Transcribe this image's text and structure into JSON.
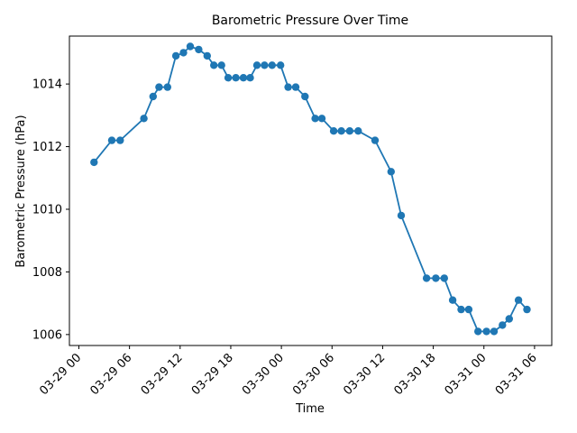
{
  "figure": {
    "background": "#ffffff",
    "text_color": "#000000"
  },
  "chart_data": {
    "type": "line",
    "title": "Barometric Pressure Over Time",
    "xlabel": "Time",
    "ylabel": "Barometric Pressure (hPa)",
    "grid": false,
    "legend": "none",
    "line_color": "#1f77b4",
    "marker": "circle",
    "x_unit": "hours since 03-29 00:00",
    "x": [
      1.8,
      3.9,
      4.9,
      7.7,
      8.8,
      9.5,
      10.5,
      11.5,
      12.4,
      13.2,
      14.2,
      15.2,
      16.0,
      16.9,
      17.7,
      18.6,
      19.5,
      20.3,
      21.1,
      22.0,
      22.9,
      23.9,
      24.8,
      25.7,
      26.8,
      28.0,
      28.8,
      30.2,
      31.1,
      32.1,
      33.1,
      35.1,
      37.0,
      38.2,
      41.2,
      42.3,
      43.3,
      44.3,
      45.3,
      46.2,
      47.3,
      48.3,
      49.2,
      50.2,
      51.0,
      52.1,
      53.1
    ],
    "y": [
      1011.5,
      1012.2,
      1012.2,
      1012.9,
      1013.6,
      1013.9,
      1013.9,
      1014.9,
      1015.0,
      1015.2,
      1015.1,
      1014.9,
      1014.6,
      1014.6,
      1014.2,
      1014.2,
      1014.2,
      1014.2,
      1014.6,
      1014.6,
      1014.6,
      1014.6,
      1013.9,
      1013.9,
      1013.6,
      1012.9,
      1012.9,
      1012.5,
      1012.5,
      1012.5,
      1012.5,
      1012.2,
      1011.2,
      1009.8,
      1007.8,
      1007.8,
      1007.8,
      1007.1,
      1006.8,
      1006.8,
      1006.1,
      1006.1,
      1006.1,
      1006.3,
      1006.5,
      1007.1,
      1006.8
    ],
    "xlim": [
      -1.12,
      56.04
    ],
    "ylim": [
      1005.65,
      1015.53
    ],
    "xticks": {
      "positions_hours": [
        0,
        6,
        12,
        18,
        24,
        30,
        36,
        42,
        48,
        54
      ],
      "labels": [
        "03-29 00",
        "03-29 06",
        "03-29 12",
        "03-29 18",
        "03-30 00",
        "03-30 06",
        "03-30 12",
        "03-30 18",
        "03-31 00",
        "03-31 06"
      ],
      "rotation_deg": 45
    },
    "yticks": {
      "positions": [
        1006,
        1008,
        1010,
        1012,
        1014
      ],
      "labels": [
        "1006",
        "1008",
        "1010",
        "1012",
        "1014"
      ]
    }
  }
}
